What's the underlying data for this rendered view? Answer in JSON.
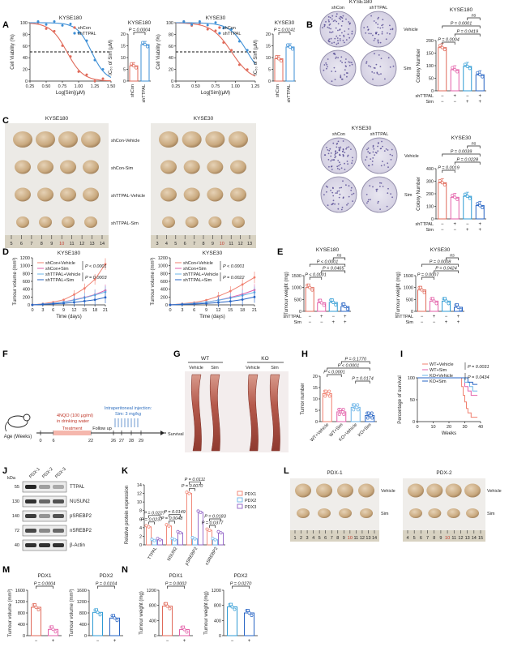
{
  "panels": {
    "A": "A",
    "B": "B",
    "C": "C",
    "D": "D",
    "E": "E",
    "F": "F",
    "G": "G",
    "H": "H",
    "I": "I",
    "J": "J",
    "K": "K",
    "L": "L",
    "M": "M",
    "N": "N"
  },
  "legend": {
    "shCon": "shCon",
    "shTTPAL": "shTTPAL"
  },
  "colors": {
    "red": "#e06a5a",
    "blue": "#3d8fd6",
    "pink": "#e35fa8",
    "cyan": "#2f9bd4",
    "purple": "#8f5fc5",
    "salmon": "#f07f6e",
    "deepblue": "#2764c4",
    "lightblue": "#6bb4e8"
  },
  "viability": [
    {
      "title": "KYSE180",
      "ylabel": "Cell Viability (%)",
      "xlabel": "Log[Sim](μM)",
      "xticks": [
        "0.25",
        "0.50",
        "0.75",
        "1.00",
        "1.25",
        "1.50"
      ],
      "yticks": [
        "0",
        "20",
        "40",
        "60",
        "80",
        "100"
      ],
      "xlim": [
        0.25,
        1.5
      ]
    },
    {
      "title": "KYSE30",
      "ylabel": "Cell Viability (%)",
      "xlabel": "Log[Sim](μM)",
      "xticks": [
        "0.25",
        "0.50",
        "0.75",
        "1.00",
        "1.25"
      ],
      "yticks": [
        "0",
        "20",
        "40",
        "60",
        "80",
        "100"
      ],
      "xlim": [
        0.25,
        1.25
      ]
    }
  ],
  "ic50": [
    {
      "title": "KYSE180",
      "p": "P = 0.0004",
      "ylabel": "IC₅₀ of Sim (μM)",
      "yticks": [
        "0",
        "5",
        "10",
        "15",
        "20"
      ],
      "cats": [
        "shCon",
        "shTTPAL"
      ],
      "values": [
        6.5,
        15.5
      ],
      "ylim": [
        0,
        20
      ]
    },
    {
      "title": "KYSE30",
      "p": "P = 0.0141",
      "ylabel": "IC₅₀ of Sim (μM)",
      "yticks": [
        "0",
        "5",
        "10",
        "15",
        "20"
      ],
      "cats": [
        "shCon",
        "shTTPAL"
      ],
      "values": [
        9.5,
        14.5
      ],
      "ylim": [
        0,
        20
      ]
    }
  ],
  "colonyImages": [
    {
      "title": "KYSE180",
      "cols": [
        "shCon",
        "shTTPAL"
      ],
      "rows": [
        "Vehicle",
        "Sim"
      ]
    },
    {
      "title": "KYSE30",
      "cols": [
        "shCon",
        "shTTPAL"
      ],
      "rows": [
        "Vehicle",
        "Sim"
      ]
    }
  ],
  "colonyBars": [
    {
      "title": "KYSE180",
      "ylabel": "Colony Number",
      "yticks": [
        "0",
        "50",
        "100",
        "150",
        "200"
      ],
      "ylim": [
        0,
        200
      ],
      "values": [
        172,
        84,
        97,
        64
      ],
      "pvals": [
        "P = 0.0001",
        "P = 0.0004",
        "P = 0.0419",
        "ns"
      ],
      "rowLabels": [
        "shTTPAL",
        "Sim"
      ],
      "signs": [
        [
          "−",
          "+",
          "−",
          "+"
        ],
        [
          "−",
          "−",
          "+",
          "+"
        ]
      ]
    },
    {
      "title": "KYSE30",
      "ylabel": "Colony Number",
      "yticks": [
        "0",
        "100",
        "200",
        "300",
        "400"
      ],
      "ylim": [
        0,
        400
      ],
      "values": [
        288,
        172,
        180,
        106
      ],
      "pvals": [
        "P = 0.0039",
        "P = 0.0019",
        "P = 0.0228",
        "ns"
      ],
      "rowLabels": [
        "shTTPAL",
        "Sim"
      ],
      "signs": [
        [
          "−",
          "+",
          "−",
          "+"
        ],
        [
          "−",
          "−",
          "+",
          "+"
        ]
      ]
    }
  ],
  "tumorPhotos": {
    "left": "KYSE180",
    "right": "KYSE30",
    "rows": [
      "shCon-Vehicle",
      "shCon-Sim",
      "shTTPAL-Vehicle",
      "shTTPAL-Sim"
    ],
    "rulerLeft": [
      "5",
      "6",
      "7",
      "8",
      "9",
      "10",
      "11",
      "12",
      "13",
      "14"
    ],
    "rulerRight": [
      "3",
      "4",
      "5",
      "6",
      "7",
      "8",
      "9",
      "10",
      "11",
      "12",
      "13"
    ]
  },
  "growth": [
    {
      "title": "KYSE180",
      "ylabel": "Tumour volume (mm³)",
      "xlabel": "Time (days)",
      "xticks": [
        "0",
        "3",
        "6",
        "9",
        "12",
        "15",
        "18",
        "21"
      ],
      "yticks": [
        "0",
        "200",
        "400",
        "600",
        "800",
        "1000",
        "1200"
      ],
      "ylim": [
        0,
        1200
      ],
      "series": [
        {
          "name": "shCon+Vehicle",
          "values": [
            0,
            30,
            70,
            130,
            260,
            420,
            650,
            1040
          ]
        },
        {
          "name": "shCon+Sim",
          "values": [
            0,
            20,
            40,
            75,
            130,
            190,
            260,
            370
          ]
        },
        {
          "name": "shTTPAL+Vehicle",
          "values": [
            0,
            20,
            40,
            70,
            120,
            180,
            250,
            330
          ]
        },
        {
          "name": "shTTPAL+Sim",
          "values": [
            0,
            10,
            25,
            40,
            65,
            95,
            130,
            190
          ]
        }
      ],
      "p1": "P < 0.0001",
      "p2": "P = 0.0003"
    },
    {
      "title": "KYSE30",
      "ylabel": "Tumour volume (mm³)",
      "xlabel": "Time (days)",
      "xticks": [
        "0",
        "3",
        "6",
        "9",
        "12",
        "15",
        "18",
        "21"
      ],
      "yticks": [
        "0",
        "200",
        "400",
        "600",
        "800",
        "1000",
        "1200"
      ],
      "ylim": [
        0,
        1200
      ],
      "series": [
        {
          "name": "shCon+Vehicle",
          "values": [
            0,
            30,
            60,
            120,
            220,
            350,
            520,
            700
          ]
        },
        {
          "name": "shCon+Sim",
          "values": [
            0,
            20,
            40,
            70,
            120,
            190,
            270,
            380
          ]
        },
        {
          "name": "shTTPAL+Vehicle",
          "values": [
            0,
            20,
            40,
            70,
            115,
            175,
            240,
            320
          ]
        },
        {
          "name": "shTTPAL+Sim",
          "values": [
            0,
            10,
            20,
            35,
            60,
            90,
            135,
            200
          ]
        }
      ],
      "p1": "P < 0.0001",
      "p2": "P = 0.0022"
    }
  ],
  "weight": [
    {
      "title": "KYSE180",
      "ylabel": "Tumour weight (mg)",
      "yticks": [
        "0",
        "500",
        "1000",
        "1500"
      ],
      "ylim": [
        0,
        1500
      ],
      "values": [
        1000,
        360,
        375,
        200
      ],
      "pvals": [
        "P < 0.0001",
        "P < 0.0001",
        "P = 0.0465",
        "ns"
      ],
      "rowLabels": [
        "shTTPAL",
        "Sim"
      ],
      "signs": [
        [
          "−",
          "+",
          "−",
          "+"
        ],
        [
          "−",
          "−",
          "+",
          "+"
        ]
      ]
    },
    {
      "title": "KYSE30",
      "ylabel": "Tumour weight (mg)",
      "yticks": [
        "0",
        "500",
        "1000",
        "1500"
      ],
      "ylim": [
        0,
        1500
      ],
      "values": [
        900,
        430,
        430,
        170
      ],
      "pvals": [
        "P = 0.0008",
        "P = 0.0007",
        "P = 0.0424",
        "ns"
      ],
      "rowLabels": [
        "shTTPAL",
        "Sim"
      ],
      "signs": [
        [
          "−",
          "+",
          "−",
          "+"
        ],
        [
          "−",
          "−",
          "+",
          "+"
        ]
      ]
    }
  ],
  "timeline": {
    "axis": "Age (Weeks)",
    "ticks": [
      "0",
      "6",
      "22",
      "26",
      "27",
      "28",
      "29"
    ],
    "nqo1": "4NQO (100 μg/ml)",
    "nqo2": "in drinking water",
    "treatment": "Treatment",
    "follow": "Follow up",
    "injTitle": "Intraperitoneal injection:",
    "injDose": "Sim: 3 mg/kg",
    "survival": "Survival record"
  },
  "esophagi": {
    "groups": [
      "WT",
      "KO"
    ],
    "cols": [
      "Vehicle",
      "Sim",
      "Vehicle",
      "Sim"
    ]
  },
  "tumorNumber": {
    "ylabel": "Tumor number",
    "yticks": [
      "0",
      "5",
      "10",
      "15",
      "20"
    ],
    "ylim": [
      0,
      20
    ],
    "cats": [
      "WT+Vehicle",
      "WT+Sim",
      "KO+Vehicle",
      "KO+Sim"
    ],
    "values": [
      12.3,
      4.3,
      6.3,
      2.7
    ],
    "pvals": [
      "P < 0.0001",
      "P < 0.0001",
      "P = 0.1770",
      "P = 0.0174"
    ]
  },
  "survival": {
    "ylabel": "Percentage of survival",
    "xlabel": "Weeks",
    "xticks": [
      "0",
      "10",
      "20",
      "30",
      "40"
    ],
    "yticks": [
      "0",
      "50",
      "100"
    ],
    "legend": [
      "WT+Vehicle",
      "WT+Sim",
      "KO+Vehicle",
      "KO+Sim"
    ],
    "p1": "P = 0.0031",
    "p2": "P = 0.0434"
  },
  "western": {
    "kda": "kDa",
    "markers": [
      "55",
      "130",
      "140",
      "72",
      "40"
    ],
    "lanes": [
      "PDX-1",
      "PDX-2",
      "PDX-3"
    ],
    "bands": [
      "TTPAL",
      "NUSUN2",
      "pSREBP2",
      "nSREBP2",
      "β-Actin"
    ]
  },
  "protein": {
    "ylabel": "Relative protein expression",
    "yticks": [
      "0",
      "2",
      "4",
      "6",
      "8",
      "10",
      "12",
      "14"
    ],
    "ylim": [
      0,
      14
    ],
    "cats": [
      "TTPAL",
      "NSUN2",
      "pSREBP2",
      "nSREBP2"
    ],
    "legend": [
      "PDX1",
      "PDX2",
      "PDX3"
    ],
    "values": [
      [
        4.2,
        1.0,
        1.2
      ],
      [
        4.4,
        1.2,
        2.8
      ],
      [
        12.0,
        1.4,
        7.6
      ],
      [
        3.4,
        1.2,
        2.8
      ]
    ],
    "pvals": [
      "P = 0.0227",
      "P = 0.0237",
      "P = 0.0149",
      "P = 0.0048",
      "P = 0.0111",
      "P = 0.0070",
      "P = 0.0183",
      "P = 0.0377"
    ]
  },
  "pdxPhotos": {
    "left": "PDX-1",
    "right": "PDX-2",
    "rows": [
      "Vehicle",
      "Sim"
    ],
    "rulerLeft": [
      "1",
      "2",
      "3",
      "4",
      "5",
      "6",
      "7",
      "8",
      "9",
      "10",
      "11",
      "12",
      "13",
      "14"
    ],
    "rulerRight": [
      "4",
      "5",
      "6",
      "7",
      "8",
      "9",
      "10",
      "11",
      "12",
      "13",
      "14",
      "15"
    ]
  },
  "pdxVolume": [
    {
      "title": "PDX1",
      "ylabel": "Tumour volume (mm³)",
      "yticks": [
        "0",
        "400",
        "800",
        "1200",
        "1600"
      ],
      "ylim": [
        0,
        1600
      ],
      "values": [
        1000,
        220
      ],
      "p": "P = 0.0004",
      "signs": [
        "−",
        "+"
      ]
    },
    {
      "title": "PDX2",
      "ylabel": "Tumour volume (mm³)",
      "yticks": [
        "0",
        "400",
        "800",
        "1200",
        "1600"
      ],
      "ylim": [
        0,
        1600
      ],
      "values": [
        820,
        620
      ],
      "p": "P = 0.0104",
      "signs": [
        "−",
        "+"
      ]
    }
  ],
  "pdxWeight": [
    {
      "title": "PDX1",
      "ylabel": "Tumour weight (mg)",
      "yticks": [
        "0",
        "400",
        "800",
        "1200"
      ],
      "ylim": [
        0,
        1200
      ],
      "values": [
        780,
        160
      ],
      "p": "P = 0.0002",
      "signs": [
        "−",
        "+"
      ]
    },
    {
      "title": "PDX2",
      "ylabel": "Tumour weight (mg)",
      "yticks": [
        "0",
        "400",
        "800",
        "1200"
      ],
      "ylim": [
        0,
        1200
      ],
      "values": [
        760,
        600
      ],
      "p": "P = 0.0270",
      "signs": [
        "−",
        "+"
      ]
    }
  ]
}
